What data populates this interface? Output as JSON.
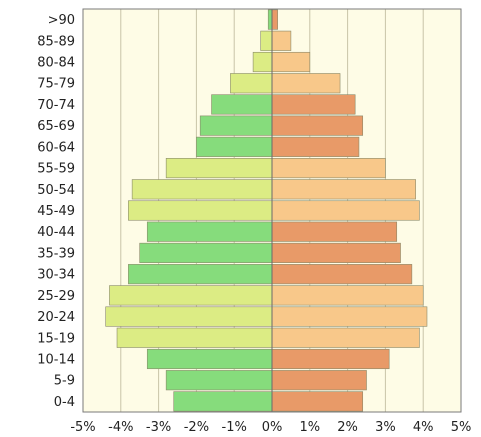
{
  "chart_data": {
    "type": "bar",
    "orientation": "horizontal",
    "layout": "population-pyramid",
    "categories": [
      "0-4",
      "5-9",
      "10-14",
      "15-19",
      "20-24",
      "25-29",
      "30-34",
      "35-39",
      "40-44",
      "45-49",
      "50-54",
      "55-59",
      "60-64",
      "65-69",
      "70-74",
      "75-79",
      "80-84",
      "85-89",
      ">90"
    ],
    "series": [
      {
        "values": [
          -2.6,
          -2.8,
          -3.3,
          -4.1,
          -4.4,
          -4.3,
          -3.8,
          -3.5,
          -3.3,
          -3.8,
          -3.7,
          -2.8,
          -2.0,
          -1.9,
          -1.6,
          -1.1,
          -0.5,
          -0.3,
          -0.1
        ]
      },
      {
        "values": [
          2.4,
          2.5,
          3.1,
          3.9,
          4.1,
          4.0,
          3.7,
          3.4,
          3.3,
          3.9,
          3.8,
          3.0,
          2.3,
          2.4,
          2.2,
          1.8,
          1.0,
          0.5,
          0.15
        ]
      }
    ],
    "xlim": [
      -5,
      5
    ],
    "xticks": [
      "-5%",
      "-4%",
      "-3%",
      "-2%",
      "-1%",
      "0%",
      "1%",
      "2%",
      "3%",
      "4%",
      "5%"
    ],
    "grid": true,
    "colors": {
      "plot_background": "#fefce6",
      "gridline": "#c9c4a8",
      "frame": "#7a7a7a",
      "bar_outline": "#8a8a6a",
      "left_dark": "#86dc7c",
      "left_light": "#dcec84",
      "right_dark": "#e89a68",
      "right_light": "#f8c88a"
    }
  }
}
